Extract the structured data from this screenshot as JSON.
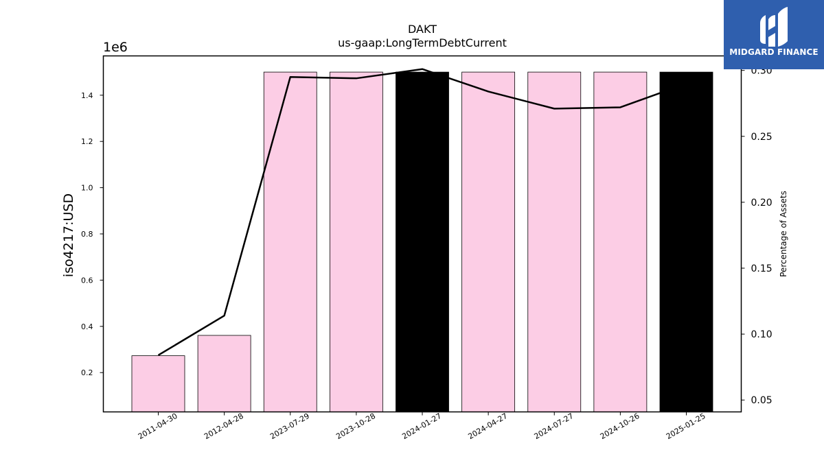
{
  "chart_data": {
    "type": "bar",
    "title": "DAKT",
    "subtitle": "us-gaap:LongTermDebtCurrent",
    "ylabel": "iso4217:USD",
    "y_offset_text": "1e6",
    "y2label": "Percentage of Assets",
    "categories": [
      "2011-04-30",
      "2012-04-28",
      "2023-07-29",
      "2023-10-28",
      "2024-01-27",
      "2024-04-27",
      "2024-07-27",
      "2024-10-26",
      "2025-01-25"
    ],
    "values": [
      273000,
      361000,
      1500000,
      1500000,
      1500000,
      1500000,
      1500000,
      1500000,
      1500000
    ],
    "bar_colors": [
      "#fccde5",
      "#fccde5",
      "#fccde5",
      "#fccde5",
      "#000000",
      "#fccde5",
      "#fccde5",
      "#fccde5",
      "#000000"
    ],
    "line_series": {
      "name": "",
      "values": [
        0.084,
        0.114,
        0.295,
        0.294,
        0.301,
        0.284,
        0.271,
        0.272,
        0.29
      ]
    },
    "ylim": [
      0.03,
      1.57
    ],
    "y_ticks": [
      0.2,
      0.4,
      0.6,
      0.8,
      1.0,
      1.2,
      1.4
    ],
    "y_tick_labels": [
      "0.2",
      "0.4",
      "0.6",
      "0.8",
      "1.0",
      "1.2",
      "1.4"
    ],
    "y2lim": [
      0.041,
      0.311
    ],
    "y2_ticks": [
      0.05,
      0.1,
      0.15,
      0.2,
      0.25,
      0.3
    ],
    "y2_tick_labels": [
      "0.05",
      "0.10",
      "0.15",
      "0.20",
      "0.25",
      "0.30"
    ],
    "grid": false,
    "legend": "none"
  },
  "logo": {
    "text": "MIDGARD FINANCE",
    "background": "#2f5fae"
  }
}
